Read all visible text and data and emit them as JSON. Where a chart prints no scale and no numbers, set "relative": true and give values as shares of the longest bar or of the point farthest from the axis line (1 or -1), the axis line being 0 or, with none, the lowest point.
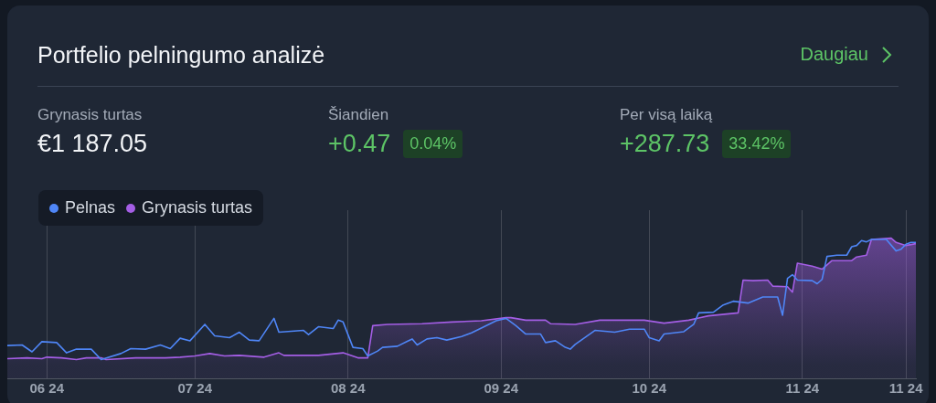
{
  "chart_data": {
    "type": "line",
    "title": "Portfelio pelningumo analizė",
    "annotations": [
      "Daugiau",
      "Grynasis turtas",
      "€1 187.05",
      "Šiandien",
      "+0.47",
      "0.04%",
      "Per visą laiką",
      "+287.73",
      "33.42%"
    ],
    "relative": true,
    "legend": "top left",
    "grid": "x",
    "marker": "none",
    "xlim": [
      "2024-05-24",
      "2024-11-24"
    ],
    "xticks": [
      {
        "value": "2024-06-01",
        "label": "06 24"
      },
      {
        "value": "2024-07-01",
        "label": "07 24"
      },
      {
        "value": "2024-08-01",
        "label": "08 24"
      },
      {
        "value": "2024-09-01",
        "label": "09 24"
      },
      {
        "value": "2024-10-01",
        "label": "10 24"
      },
      {
        "value": "2024-11-01",
        "label": "11 24"
      },
      {
        "value": "2024-11-22",
        "label": "11 24"
      }
    ],
    "series": [
      {
        "name": "Pelnas",
        "type": "line",
        "color": "#4f86f7",
        "x": [
          "2024-05-24",
          "2024-05-27",
          "2024-05-29",
          "2024-05-31",
          "2024-06-03",
          "2024-06-05",
          "2024-06-07",
          "2024-06-10",
          "2024-06-12",
          "2024-06-16",
          "2024-06-18",
          "2024-06-21",
          "2024-06-24",
          "2024-06-26",
          "2024-06-28",
          "2024-06-30",
          "2024-07-03",
          "2024-07-05",
          "2024-07-08",
          "2024-07-10",
          "2024-07-12",
          "2024-07-14",
          "2024-07-17",
          "2024-07-18",
          "2024-07-23",
          "2024-07-24",
          "2024-07-26",
          "2024-07-29",
          "2024-07-30",
          "2024-07-31",
          "2024-08-02",
          "2024-08-04",
          "2024-08-05",
          "2024-08-07",
          "2024-08-08",
          "2024-08-11",
          "2024-08-13",
          "2024-08-14",
          "2024-08-15",
          "2024-08-17",
          "2024-08-19",
          "2024-08-21",
          "2024-08-24",
          "2024-08-26",
          "2024-08-28",
          "2024-08-31",
          "2024-09-02",
          "2024-09-04",
          "2024-09-06",
          "2024-09-09",
          "2024-09-10",
          "2024-09-12",
          "2024-09-14",
          "2024-09-15",
          "2024-09-16",
          "2024-09-20",
          "2024-09-24",
          "2024-09-27",
          "2024-09-30",
          "2024-10-01",
          "2024-10-03",
          "2024-10-04",
          "2024-10-08",
          "2024-10-10",
          "2024-10-11",
          "2024-10-14",
          "2024-10-16",
          "2024-10-18",
          "2024-10-21",
          "2024-10-24",
          "2024-10-27",
          "2024-10-28",
          "2024-10-29",
          "2024-10-30",
          "2024-10-31",
          "2024-11-03",
          "2024-11-04",
          "2024-11-05",
          "2024-11-06",
          "2024-11-08",
          "2024-11-10",
          "2024-11-11",
          "2024-11-12",
          "2024-11-13",
          "2024-11-14",
          "2024-11-15",
          "2024-11-18",
          "2024-11-20",
          "2024-11-21",
          "2024-11-22",
          "2024-11-23",
          "2024-11-24"
        ],
        "values": [
          0.234,
          0.238,
          0.189,
          0.262,
          0.255,
          0.182,
          0.209,
          0.208,
          0.134,
          0.177,
          0.212,
          0.208,
          0.238,
          0.212,
          0.286,
          0.268,
          0.385,
          0.303,
          0.29,
          0.329,
          0.273,
          0.268,
          0.428,
          0.329,
          0.342,
          0.312,
          0.368,
          0.355,
          0.415,
          0.402,
          0.221,
          0.212,
          0.16,
          0.195,
          0.221,
          0.229,
          0.264,
          0.281,
          0.238,
          0.281,
          0.29,
          0.273,
          0.299,
          0.325,
          0.359,
          0.411,
          0.428,
          0.376,
          0.316,
          0.316,
          0.255,
          0.268,
          0.221,
          0.208,
          0.242,
          0.342,
          0.329,
          0.351,
          0.351,
          0.29,
          0.268,
          0.316,
          0.333,
          0.385,
          0.467,
          0.472,
          0.524,
          0.55,
          0.537,
          0.58,
          0.58,
          0.45,
          0.714,
          0.74,
          0.701,
          0.697,
          0.675,
          0.706,
          0.87,
          0.879,
          0.879,
          0.939,
          0.948,
          0.983,
          0.974,
          0.991,
          0.991,
          0.909,
          0.922,
          0.957,
          0.97,
          0.97
        ]
      },
      {
        "name": "Grynasis turtas",
        "type": "area",
        "color": "#a45ee5",
        "x": [
          "2024-05-24",
          "2024-05-28",
          "2024-05-31",
          "2024-06-01",
          "2024-06-04",
          "2024-06-07",
          "2024-06-09",
          "2024-06-12",
          "2024-06-13",
          "2024-06-19",
          "2024-06-25",
          "2024-06-28",
          "2024-07-01",
          "2024-07-04",
          "2024-07-07",
          "2024-07-10",
          "2024-07-15",
          "2024-07-18",
          "2024-07-19",
          "2024-07-26",
          "2024-07-31",
          "2024-08-03",
          "2024-08-05",
          "2024-08-06",
          "2024-08-09",
          "2024-08-16",
          "2024-08-22",
          "2024-08-28",
          "2024-09-02",
          "2024-09-03",
          "2024-09-06",
          "2024-09-10",
          "2024-09-11",
          "2024-09-16",
          "2024-09-21",
          "2024-09-30",
          "2024-10-04",
          "2024-10-09",
          "2024-10-13",
          "2024-10-19",
          "2024-10-20",
          "2024-10-22",
          "2024-10-25",
          "2024-10-26",
          "2024-10-29",
          "2024-10-30",
          "2024-10-31",
          "2024-11-03",
          "2024-11-05",
          "2024-11-07",
          "2024-11-11",
          "2024-11-12",
          "2024-11-14",
          "2024-11-15",
          "2024-11-19",
          "2024-11-20",
          "2024-11-22",
          "2024-11-24"
        ],
        "values": [
          0.14,
          0.146,
          0.14,
          0.151,
          0.146,
          0.134,
          0.146,
          0.146,
          0.134,
          0.146,
          0.146,
          0.151,
          0.16,
          0.177,
          0.16,
          0.164,
          0.151,
          0.182,
          0.164,
          0.164,
          0.182,
          0.146,
          0.146,
          0.376,
          0.385,
          0.39,
          0.402,
          0.411,
          0.433,
          0.433,
          0.415,
          0.415,
          0.39,
          0.385,
          0.415,
          0.415,
          0.394,
          0.415,
          0.446,
          0.467,
          0.701,
          0.697,
          0.701,
          0.658,
          0.654,
          0.615,
          0.822,
          0.801,
          0.779,
          0.84,
          0.84,
          0.866,
          0.879,
          0.991,
          1,
          0.97,
          0.948,
          0.961
        ]
      }
    ]
  }
}
